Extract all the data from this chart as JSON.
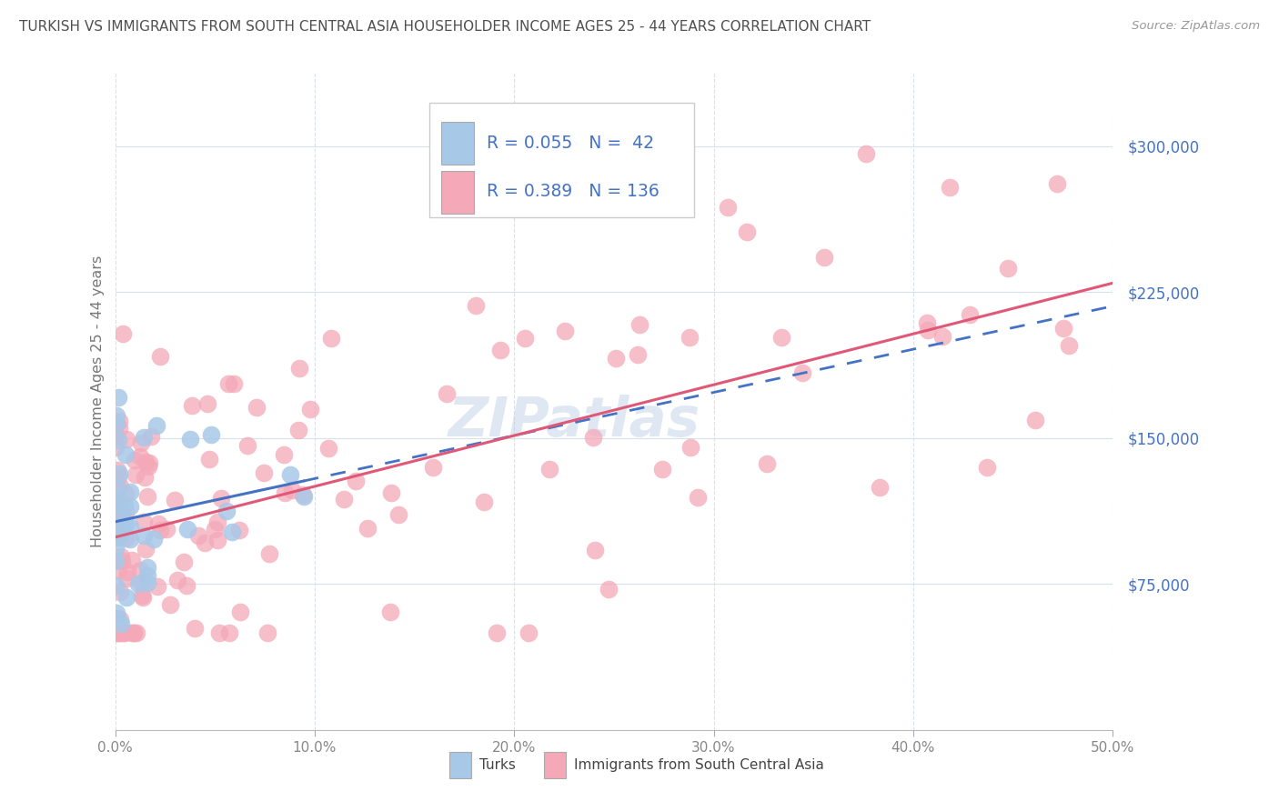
{
  "title": "TURKISH VS IMMIGRANTS FROM SOUTH CENTRAL ASIA HOUSEHOLDER INCOME AGES 25 - 44 YEARS CORRELATION CHART",
  "source": "Source: ZipAtlas.com",
  "ylabel": "Householder Income Ages 25 - 44 years",
  "xlim": [
    0.0,
    0.5
  ],
  "ylim": [
    0,
    337500
  ],
  "yticks": [
    0,
    75000,
    150000,
    225000,
    300000
  ],
  "ytick_labels": [
    "",
    "$75,000",
    "$150,000",
    "$225,000",
    "$300,000"
  ],
  "xtick_labels": [
    "0.0%",
    "",
    "",
    "",
    "",
    "",
    "",
    "",
    "",
    "",
    "10.0%",
    "",
    "",
    "",
    "",
    "",
    "",
    "",
    "",
    "",
    "20.0%",
    "",
    "",
    "",
    "",
    "",
    "",
    "",
    "",
    "",
    "30.0%",
    "",
    "",
    "",
    "",
    "",
    "",
    "",
    "",
    "",
    "40.0%",
    "",
    "",
    "",
    "",
    "",
    "",
    "",
    "",
    "",
    "50.0%"
  ],
  "xticks_major": [
    0.0,
    0.1,
    0.2,
    0.3,
    0.4,
    0.5
  ],
  "blue_R": 0.055,
  "blue_N": 42,
  "pink_R": 0.389,
  "pink_N": 136,
  "blue_color": "#a8c8e8",
  "pink_color": "#f4a8b8",
  "blue_line_color": "#4472c4",
  "pink_line_color": "#e05878",
  "legend_blue_label": "Turks",
  "legend_pink_label": "Immigrants from South Central Asia",
  "watermark": "ZIPatlas",
  "background_color": "#ffffff",
  "grid_color": "#d8e0ec",
  "title_color": "#505050",
  "axis_label_color": "#4472c4",
  "tick_label_color": "#888888",
  "source_color": "#999999"
}
